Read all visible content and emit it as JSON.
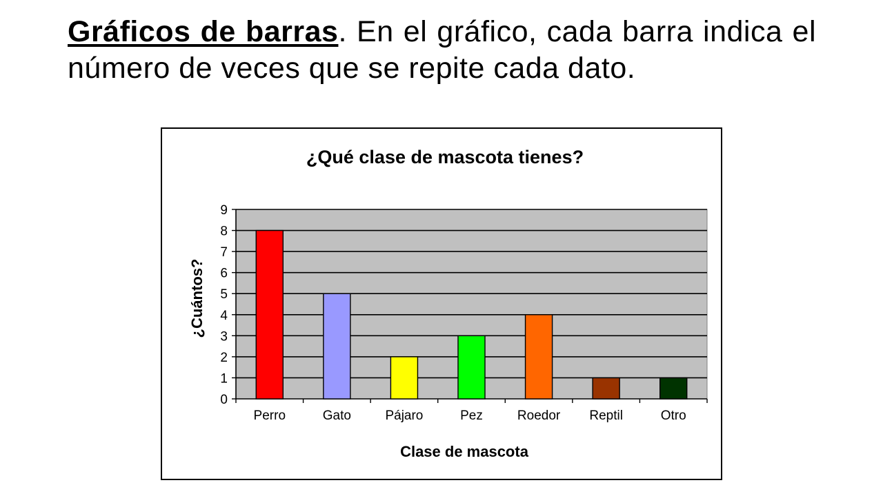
{
  "intro": {
    "lead": "Gráficos de barras",
    "rest": ". En el gráfico, cada barra indica el número de veces que se repite cada dato."
  },
  "chart_data": {
    "type": "bar",
    "title": "¿Qué clase de mascota tienes?",
    "xlabel": "Clase de mascota",
    "ylabel": "¿Cuántos?",
    "categories": [
      "Perro",
      "Gato",
      "Pájaro",
      "Pez",
      "Roedor",
      "Reptil",
      "Otro"
    ],
    "values": [
      8,
      5,
      2,
      3,
      4,
      1,
      1
    ],
    "colors": [
      "#ff0000",
      "#9999ff",
      "#ffff00",
      "#00ff00",
      "#ff6600",
      "#993300",
      "#003300"
    ],
    "ylim": [
      0,
      9
    ],
    "yticks": [
      "0",
      "1",
      "2",
      "3",
      "4",
      "5",
      "6",
      "7",
      "8",
      "9"
    ],
    "grid": true,
    "plot_background": "#c0c0c0",
    "legend": "none"
  }
}
